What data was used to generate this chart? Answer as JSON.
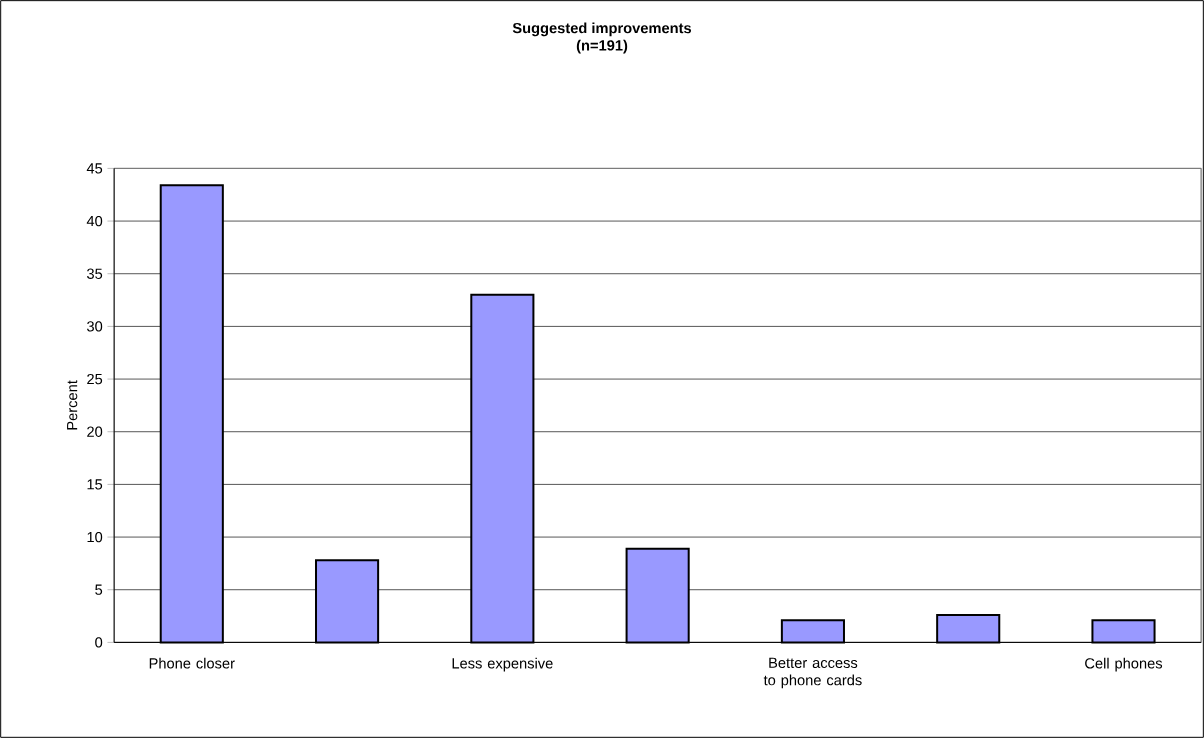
{
  "chart_data": {
    "type": "bar",
    "title": "Suggested improvements",
    "subtitle": "(n=191)",
    "ylabel": "Percent",
    "categories": [
      "Phone closer",
      null,
      "Less expensive",
      null,
      "Better access to phone cards",
      null,
      "Cell phones"
    ],
    "values": [
      43.4,
      7.8,
      33.0,
      8.9,
      2.1,
      2.6,
      2.1
    ],
    "color": "#9999ff",
    "ylim": [
      0,
      45
    ],
    "yticks": [
      0,
      5,
      10,
      15,
      20,
      25,
      30,
      35,
      40,
      45
    ],
    "grid": "y"
  }
}
